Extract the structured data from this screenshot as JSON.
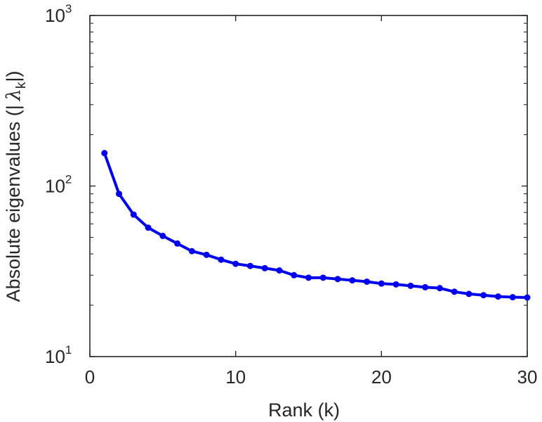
{
  "chart_data": {
    "type": "line",
    "title": "",
    "xlabel": "Rank (k)",
    "ylabel": {
      "main": "Absolute eigenvalues (|",
      "symbol": "λ",
      "subscript": "k",
      "close": "|)"
    },
    "xlim": [
      0,
      30
    ],
    "ylim": [
      10,
      1000
    ],
    "yscale": "log",
    "grid": false,
    "legend": "none",
    "x_ticks": [
      "0",
      "10",
      "20",
      "30"
    ],
    "y_ticks": [
      {
        "base": "10",
        "exp": "1"
      },
      {
        "base": "10",
        "exp": "2"
      },
      {
        "base": "10",
        "exp": "3"
      }
    ],
    "line_color": "#0000ee",
    "series": [
      {
        "x": [
          1,
          2,
          3,
          4,
          5,
          6,
          7,
          8,
          9,
          10,
          11,
          12,
          13,
          14,
          15,
          16,
          17,
          18,
          19,
          20,
          21,
          22,
          23,
          24,
          25,
          26,
          27,
          28,
          29,
          30
        ],
        "y": [
          156,
          90,
          68,
          57,
          51,
          46,
          41.5,
          39.5,
          37,
          35,
          34,
          33,
          32,
          30,
          29,
          29,
          28.5,
          28,
          27.5,
          26.8,
          26.5,
          26,
          25.5,
          25.2,
          24,
          23.3,
          22.9,
          22.5,
          22.3,
          22.2
        ]
      }
    ]
  }
}
